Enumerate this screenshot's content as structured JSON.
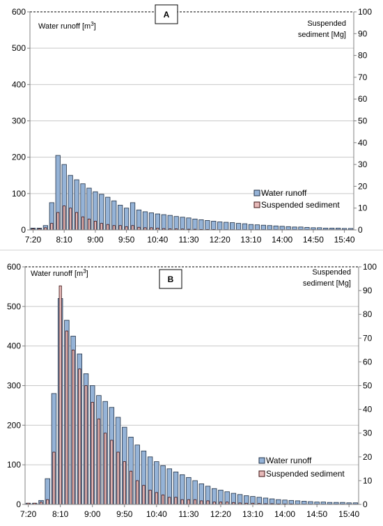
{
  "colors": {
    "water": "#95B3D7",
    "water_edge": "#1F2F44",
    "sediment": "#E6B9B8",
    "sediment_edge": "#3A0F0F",
    "grid": "#C8C8C8",
    "axis": "#808080",
    "divider": "#D0D0D0"
  },
  "chart_data": [
    {
      "type": "bar",
      "panel_label": "A",
      "left_axis_label": "Water runoff [m",
      "left_axis_label_sup": "3",
      "left_axis_label_end": "]",
      "right_axis_label_line1": "Suspended",
      "right_axis_label_line2": "sediment  [Mg]",
      "ylim_left": [
        0,
        600
      ],
      "yticks_left": [
        "0",
        "100",
        "200",
        "300",
        "400",
        "500",
        "600"
      ],
      "ylim_right": [
        0,
        100
      ],
      "yticks_right": [
        "0",
        "10",
        "20",
        "30",
        "40",
        "50",
        "60",
        "70",
        "80",
        "90",
        "100"
      ],
      "xtick_labels": [
        "7:20",
        "8:10",
        "9:00",
        "9:50",
        "10:40",
        "11:30",
        "12:20",
        "13:10",
        "14:00",
        "14:50",
        "15:40"
      ],
      "xtick_every": 5,
      "interval_minutes": 10,
      "grid": true,
      "legend_position": "lower-right",
      "series": [
        {
          "name": "Water runoff",
          "axis": "left",
          "values": [
            5,
            5,
            12,
            75,
            205,
            180,
            150,
            138,
            127,
            115,
            105,
            98,
            90,
            80,
            68,
            60,
            75,
            55,
            50,
            47,
            44,
            42,
            40,
            37,
            35,
            33,
            30,
            28,
            26,
            24,
            22,
            21,
            20,
            18,
            17,
            15,
            14,
            13,
            12,
            11,
            10,
            9,
            8,
            8,
            7,
            6,
            6,
            5,
            5,
            5,
            4,
            4
          ]
        },
        {
          "name": "Suspended sediment",
          "axis": "right",
          "values": [
            0.5,
            0.5,
            1,
            3,
            8,
            11,
            10,
            8,
            6,
            5,
            4,
            3,
            2.5,
            2,
            2,
            1.5,
            2,
            1.2,
            1,
            1,
            0.8,
            0.6,
            0.5,
            0.5,
            0.4,
            0.3,
            0.3,
            0.2,
            0.2,
            0.2,
            0.1,
            0.1,
            0.1,
            0.1,
            0.1,
            0.1,
            0.1,
            0.1,
            0.1,
            0.1,
            0.1,
            0.1,
            0.1,
            0.1,
            0.1,
            0.1,
            0.1,
            0.1,
            0.1,
            0.1,
            0.1,
            0.1
          ]
        }
      ]
    },
    {
      "type": "bar",
      "panel_label": "B",
      "left_axis_label": "Water runoff [m",
      "left_axis_label_sup": "3",
      "left_axis_label_end": "]",
      "right_axis_label_line1": "Suspended",
      "right_axis_label_line2": "sediment [Mg]",
      "ylim_left": [
        0,
        600
      ],
      "yticks_left": [
        "0",
        "100",
        "200",
        "300",
        "400",
        "500",
        "600"
      ],
      "ylim_right": [
        0,
        100
      ],
      "yticks_right": [
        "0",
        "10",
        "20",
        "30",
        "40",
        "50",
        "60",
        "70",
        "80",
        "90",
        "100"
      ],
      "xtick_labels": [
        "7:20",
        "8:10",
        "9:00",
        "9:50",
        "10:40",
        "11:30",
        "12:20",
        "13:10",
        "14:00",
        "14:50",
        "15:40"
      ],
      "xtick_every": 5,
      "interval_minutes": 10,
      "grid": true,
      "legend_position": "lower-right",
      "series": [
        {
          "name": "Water runoff",
          "axis": "left",
          "values": [
            3,
            3,
            10,
            65,
            280,
            520,
            465,
            425,
            380,
            330,
            300,
            275,
            260,
            245,
            220,
            195,
            170,
            150,
            135,
            120,
            108,
            98,
            90,
            82,
            75,
            68,
            60,
            52,
            46,
            40,
            36,
            32,
            28,
            25,
            22,
            20,
            18,
            16,
            14,
            12,
            11,
            10,
            9,
            8,
            7,
            6,
            6,
            5,
            5,
            5,
            4,
            4
          ]
        },
        {
          "name": "Suspended sediment",
          "axis": "right",
          "values": [
            0.5,
            0.5,
            1,
            2,
            22,
            92,
            73,
            65,
            57,
            50,
            43,
            36,
            30,
            27,
            22,
            18,
            14,
            10,
            8,
            6,
            5,
            4,
            3,
            3,
            2,
            2,
            2,
            1.5,
            1.5,
            1,
            1,
            1,
            0.8,
            0.6,
            0.5,
            0.5,
            0.4,
            0.3,
            0.3,
            0.2,
            0.2,
            0.2,
            0.1,
            0.1,
            0.1,
            0.1,
            0.1,
            0.1,
            0.1,
            0.1,
            0.1,
            0.1
          ]
        }
      ]
    }
  ]
}
